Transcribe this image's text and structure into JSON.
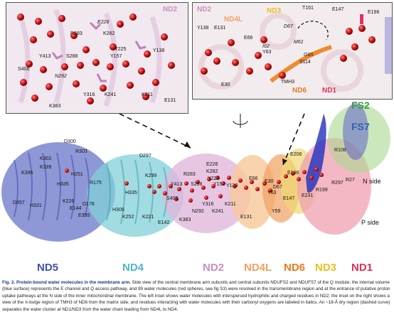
{
  "inset_left": {
    "title": "ND2",
    "labels": [
      "E226",
      "R283",
      "K282",
      "Y413",
      "S288",
      "Y225",
      "Y157",
      "Y138",
      "S406",
      "N292",
      "Y316",
      "K241",
      "K211",
      "E131",
      "K383"
    ]
  },
  "inset_right": {
    "labels": {
      "nd2": "ND2",
      "nd4l": "ND4L",
      "nd3": "ND3",
      "t151": "T151",
      "e147": "E147",
      "e196": "E196",
      "y138": "Y138",
      "e131": "E131",
      "d67": "D67",
      "e66": "E66",
      "m61": "M61",
      "i62": "I62",
      "y63": "Y63",
      "g65": "G65",
      "s114": "S114",
      "e30": "E30",
      "tmh3": "TMH3",
      "nd6": "ND6",
      "nd1": "ND1"
    }
  },
  "main": {
    "fs2": "FS2",
    "fs7": "FS7",
    "n_side": "N side",
    "p_side": "P side",
    "subunits": {
      "nd5": "ND5",
      "nd4": "ND4",
      "nd2": "ND2",
      "nd4l": "ND4L",
      "nd6": "ND6",
      "nd3": "ND3",
      "nd1": "ND1"
    },
    "labels": {
      "d300": "D300",
      "r303": "R303",
      "k302": "K302",
      "k339": "K339",
      "k396": "K396",
      "h251": "H251",
      "h335a": "H335",
      "r175": "R175",
      "d357": "D357",
      "h331": "H331",
      "k226": "K226",
      "e144": "E144",
      "d178": "D178",
      "e395": "E395",
      "d297": "D297",
      "k299": "K299",
      "h335b": "H335",
      "h309": "H309",
      "k252": "K252",
      "k221": "K221",
      "e142": "E142",
      "r283": "R283",
      "e226": "E226",
      "k282": "K282",
      "y225": "Y225",
      "y157": "Y157",
      "y413": "Y413",
      "s288": "S288",
      "s406": "S406",
      "y316": "Y316",
      "k211": "K211",
      "n292": "N292",
      "k241": "K241",
      "k383": "K383",
      "y138": "Y138",
      "e131": "E131",
      "e66": "E66",
      "e30": "E30",
      "y63": "Y63",
      "d67": "D67",
      "e147": "E147",
      "y59": "Y59",
      "e206": "E206",
      "e196": "E196",
      "r108": "R108",
      "r27": "R27",
      "r297": "R297",
      "r199": "R199",
      "e231": "E231"
    }
  },
  "colors": {
    "nd5": "#4050b0",
    "nd4": "#4cb8c8",
    "nd2": "#c890c0",
    "nd4l": "#f0a060",
    "nd6": "#e87a20",
    "nd3": "#e8c020",
    "nd1": "#e03050",
    "fs2": "#3a9a3a",
    "fs7": "#3060b0",
    "water": "#d02020"
  },
  "caption": {
    "lead": "Fig. 2. Protein-bound water molecules in the membrane arm.",
    "text": " Side view of the central membrane arm subunits and central subunits NDUFS2 and NDUFS7 of the Q module; the internal volume (blue surface) represents the E channel and Q access pathway, and 99 water molecules (red spheres, see fig S3) were resolved in the transmembrane region and at the entrance of putative proton uptake pathways at the N side of the inner mitochondrial membrane. The left inset shows water molecules with interspersed hydrophilic and charged residues in ND2; the inset on the right shows a view of the π-bulge region of TMH3 of ND6 from the matrix side; and residues interacting with water molecules with their carbonyl oxygens are labeled in italics. An ~18-Å dry region (dashed curve) separates the water cluster at ND1/ND3 from the water chain leading from ND4L to ND4."
  }
}
